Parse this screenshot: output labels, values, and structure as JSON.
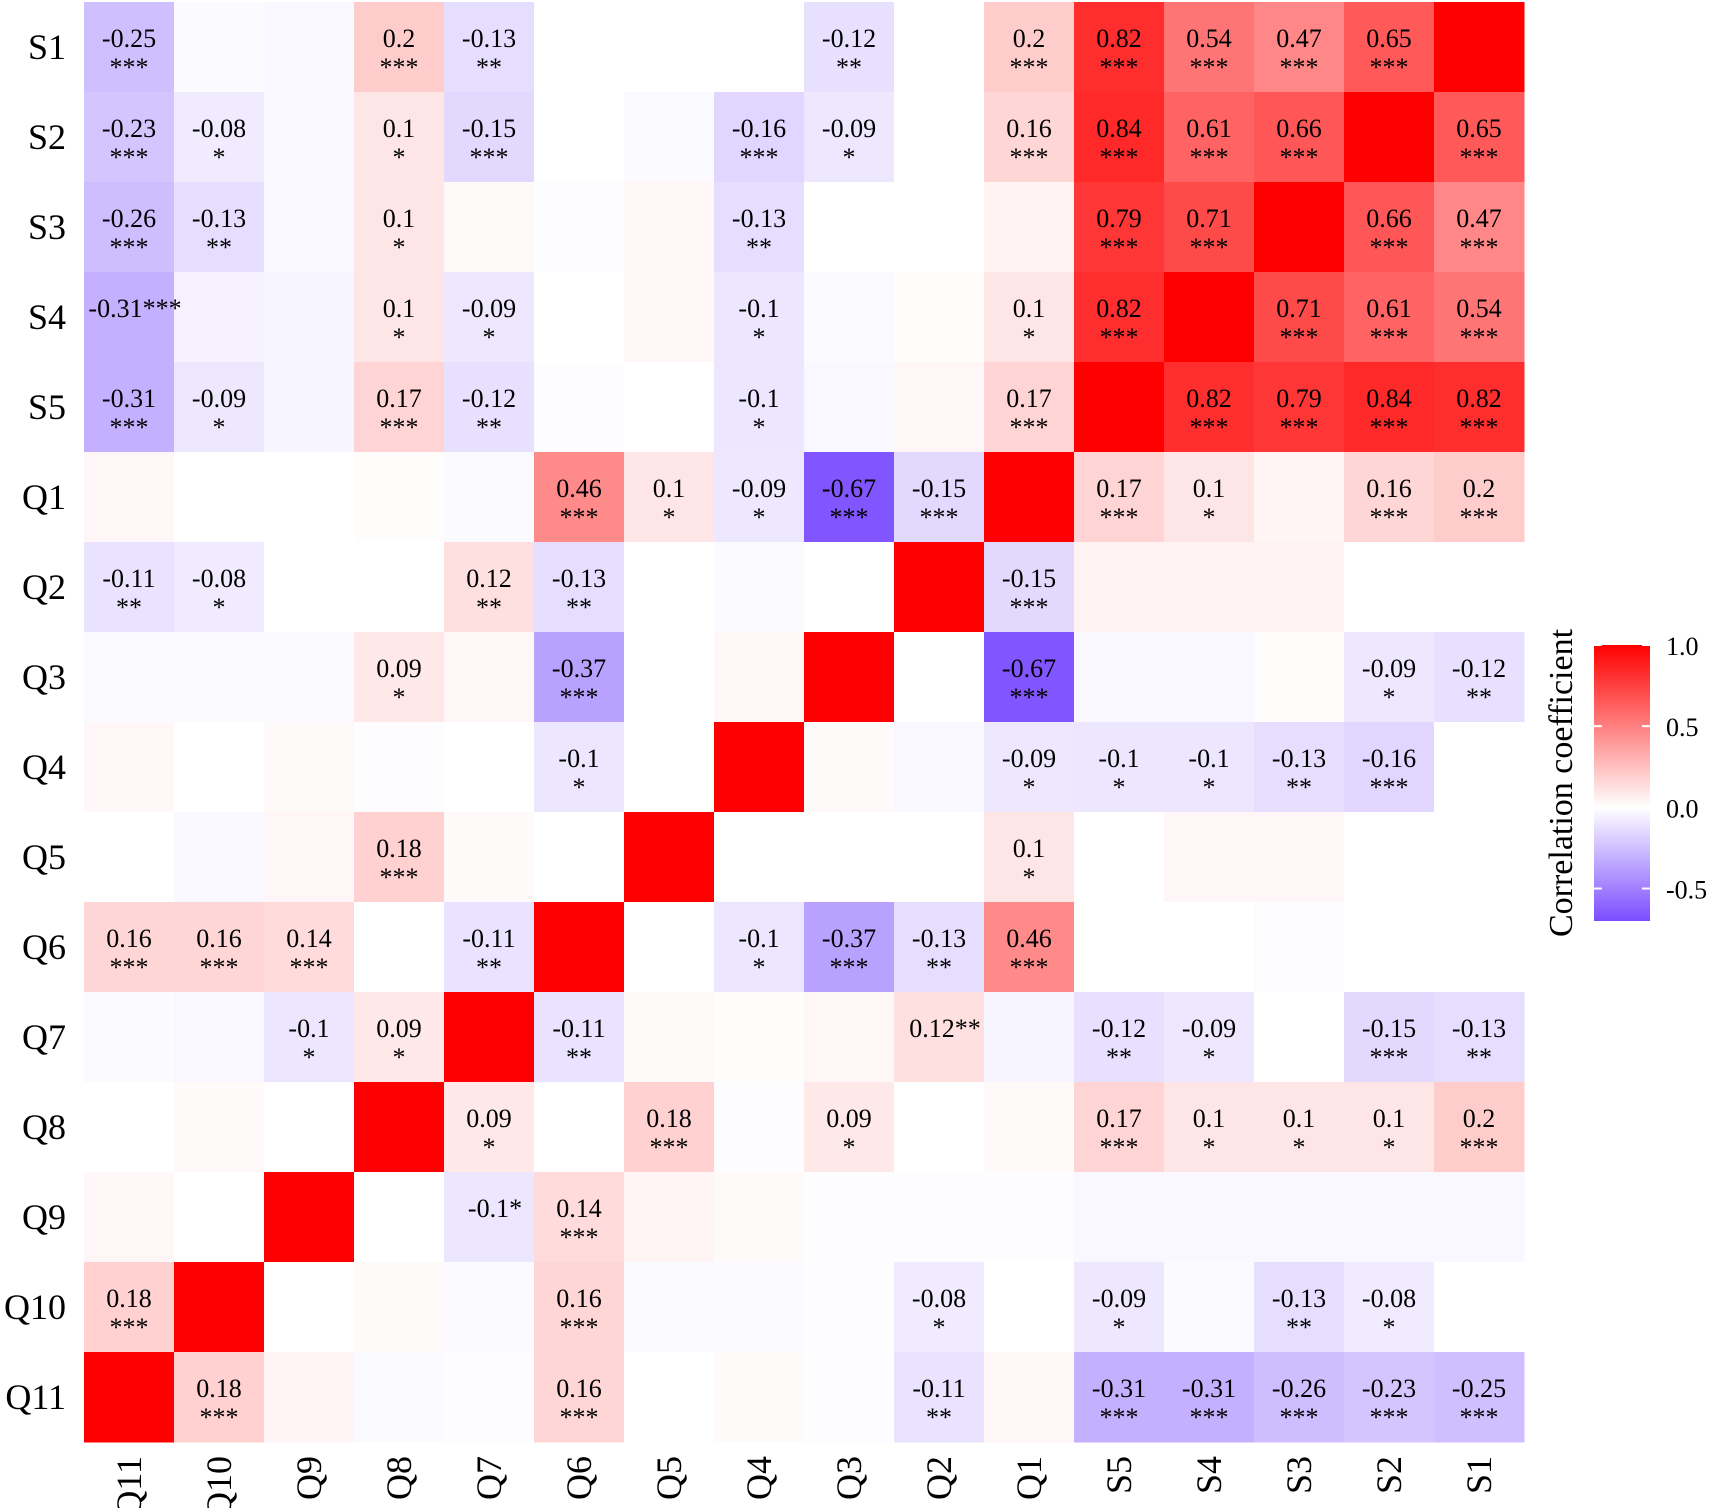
{
  "chart_data": {
    "type": "heatmap",
    "title": "",
    "xlabel": "",
    "ylabel": "",
    "x_categories": [
      "Q11",
      "Q10",
      "Q9",
      "Q8",
      "Q7",
      "Q6",
      "Q5",
      "Q4",
      "Q3",
      "Q2",
      "Q1",
      "S5",
      "S4",
      "S3",
      "S2",
      "S1"
    ],
    "y_categories": [
      "S1",
      "S2",
      "S3",
      "S4",
      "S5",
      "Q1",
      "Q2",
      "Q3",
      "Q4",
      "Q5",
      "Q6",
      "Q7",
      "Q8",
      "Q9",
      "Q10",
      "Q11"
    ],
    "values": [
      [
        -0.25,
        -0.02,
        -0.03,
        0.2,
        -0.13,
        0.0,
        0.0,
        0.0,
        -0.12,
        0.0,
        0.2,
        0.82,
        0.54,
        0.47,
        0.65,
        1.0
      ],
      [
        -0.23,
        -0.08,
        -0.03,
        0.1,
        -0.15,
        0.0,
        -0.02,
        -0.16,
        -0.09,
        0.0,
        0.16,
        0.84,
        0.61,
        0.66,
        1.0,
        0.65
      ],
      [
        -0.26,
        -0.13,
        -0.03,
        0.1,
        0.02,
        -0.01,
        0.03,
        -0.13,
        0.0,
        0.0,
        0.05,
        0.79,
        0.71,
        1.0,
        0.66,
        0.47
      ],
      [
        -0.31,
        -0.05,
        -0.04,
        0.1,
        -0.09,
        0.0,
        0.03,
        -0.1,
        -0.02,
        0.01,
        0.1,
        0.82,
        1.0,
        0.71,
        0.61,
        0.54
      ],
      [
        -0.31,
        -0.09,
        -0.04,
        0.17,
        -0.12,
        -0.01,
        0.0,
        -0.1,
        -0.03,
        0.03,
        0.17,
        1.0,
        0.82,
        0.79,
        0.84,
        0.82
      ],
      [
        0.03,
        0.0,
        0.0,
        0.01,
        -0.02,
        0.46,
        0.1,
        -0.09,
        -0.67,
        -0.15,
        1.0,
        0.17,
        0.1,
        0.04,
        0.16,
        0.2
      ],
      [
        -0.11,
        -0.08,
        0.0,
        0.0,
        0.12,
        -0.13,
        0.0,
        -0.02,
        0.0,
        1.0,
        -0.15,
        0.05,
        0.05,
        0.05,
        0.0,
        0.0
      ],
      [
        -0.02,
        -0.02,
        -0.02,
        0.09,
        0.03,
        -0.37,
        0.0,
        0.03,
        1.0,
        0.0,
        -0.67,
        -0.03,
        -0.03,
        0.01,
        -0.09,
        -0.12
      ],
      [
        0.03,
        0.0,
        0.02,
        -0.01,
        0.0,
        -0.1,
        0.0,
        1.0,
        0.02,
        -0.03,
        -0.09,
        -0.1,
        -0.1,
        -0.13,
        -0.16,
        0.0
      ],
      [
        0.0,
        -0.03,
        0.03,
        0.18,
        0.02,
        0.0,
        1.0,
        0.0,
        0.0,
        0.0,
        0.1,
        0.0,
        0.03,
        0.03,
        0.0,
        0.0
      ],
      [
        0.16,
        0.16,
        0.14,
        0.0,
        -0.11,
        1.0,
        0.0,
        -0.1,
        -0.37,
        -0.13,
        0.46,
        0.0,
        0.0,
        -0.01,
        0.0,
        0.0
      ],
      [
        -0.02,
        -0.03,
        -0.1,
        0.09,
        1.0,
        -0.11,
        0.02,
        0.01,
        0.03,
        0.12,
        -0.04,
        -0.12,
        -0.09,
        0.0,
        -0.15,
        -0.13
      ],
      [
        0.0,
        0.02,
        0.0,
        1.0,
        0.09,
        0.0,
        0.18,
        -0.01,
        0.09,
        0.0,
        0.02,
        0.17,
        0.1,
        0.1,
        0.1,
        0.2
      ],
      [
        0.03,
        0.0,
        1.0,
        0.0,
        -0.1,
        0.14,
        0.04,
        0.02,
        -0.01,
        -0.01,
        -0.01,
        -0.03,
        -0.03,
        -0.03,
        -0.03,
        -0.03
      ],
      [
        0.18,
        1.0,
        0.0,
        0.02,
        -0.02,
        0.16,
        -0.02,
        -0.02,
        -0.01,
        -0.08,
        0.0,
        -0.09,
        -0.02,
        -0.13,
        -0.08,
        0.0
      ],
      [
        1.0,
        0.18,
        0.04,
        -0.02,
        -0.01,
        0.16,
        0.0,
        0.02,
        -0.01,
        -0.11,
        0.03,
        -0.31,
        -0.31,
        -0.26,
        -0.23,
        -0.25
      ]
    ],
    "annotations": [
      {
        "row": 0,
        "col": 0,
        "value": "-0.25",
        "stars": "***"
      },
      {
        "row": 0,
        "col": 3,
        "value": "0.2",
        "stars": "***"
      },
      {
        "row": 0,
        "col": 4,
        "value": "-0.13",
        "stars": "**"
      },
      {
        "row": 0,
        "col": 8,
        "value": "-0.12",
        "stars": "**"
      },
      {
        "row": 0,
        "col": 10,
        "value": "0.2",
        "stars": "***"
      },
      {
        "row": 0,
        "col": 11,
        "value": "0.82",
        "stars": "***"
      },
      {
        "row": 0,
        "col": 12,
        "value": "0.54",
        "stars": "***"
      },
      {
        "row": 0,
        "col": 13,
        "value": "0.47",
        "stars": "***"
      },
      {
        "row": 0,
        "col": 14,
        "value": "0.65",
        "stars": "***"
      },
      {
        "row": 1,
        "col": 0,
        "value": "-0.23",
        "stars": "***"
      },
      {
        "row": 1,
        "col": 1,
        "value": "-0.08",
        "stars": "*"
      },
      {
        "row": 1,
        "col": 3,
        "value": "0.1",
        "stars": "*"
      },
      {
        "row": 1,
        "col": 4,
        "value": "-0.15",
        "stars": "***"
      },
      {
        "row": 1,
        "col": 7,
        "value": "-0.16",
        "stars": "***"
      },
      {
        "row": 1,
        "col": 8,
        "value": "-0.09",
        "stars": "*"
      },
      {
        "row": 1,
        "col": 10,
        "value": "0.16",
        "stars": "***"
      },
      {
        "row": 1,
        "col": 11,
        "value": "0.84",
        "stars": "***"
      },
      {
        "row": 1,
        "col": 12,
        "value": "0.61",
        "stars": "***"
      },
      {
        "row": 1,
        "col": 13,
        "value": "0.66",
        "stars": "***"
      },
      {
        "row": 1,
        "col": 15,
        "value": "0.65",
        "stars": "***"
      },
      {
        "row": 2,
        "col": 0,
        "value": "-0.26",
        "stars": "***"
      },
      {
        "row": 2,
        "col": 1,
        "value": "-0.13",
        "stars": "**"
      },
      {
        "row": 2,
        "col": 3,
        "value": "0.1",
        "stars": "*"
      },
      {
        "row": 2,
        "col": 7,
        "value": "-0.13",
        "stars": "**"
      },
      {
        "row": 2,
        "col": 11,
        "value": "0.79",
        "stars": "***"
      },
      {
        "row": 2,
        "col": 12,
        "value": "0.71",
        "stars": "***"
      },
      {
        "row": 2,
        "col": 14,
        "value": "0.66",
        "stars": "***"
      },
      {
        "row": 2,
        "col": 15,
        "value": "0.47",
        "stars": "***"
      },
      {
        "row": 3,
        "col": 0,
        "value": "-0.31***",
        "stars": "",
        "inline": true
      },
      {
        "row": 3,
        "col": 3,
        "value": "0.1",
        "stars": "*"
      },
      {
        "row": 3,
        "col": 4,
        "value": "-0.09",
        "stars": "*"
      },
      {
        "row": 3,
        "col": 7,
        "value": "-0.1",
        "stars": "*"
      },
      {
        "row": 3,
        "col": 10,
        "value": "0.1",
        "stars": "*"
      },
      {
        "row": 3,
        "col": 11,
        "value": "0.82",
        "stars": "***"
      },
      {
        "row": 3,
        "col": 13,
        "value": "0.71",
        "stars": "***"
      },
      {
        "row": 3,
        "col": 14,
        "value": "0.61",
        "stars": "***"
      },
      {
        "row": 3,
        "col": 15,
        "value": "0.54",
        "stars": "***"
      },
      {
        "row": 4,
        "col": 0,
        "value": "-0.31",
        "stars": "***"
      },
      {
        "row": 4,
        "col": 1,
        "value": "-0.09",
        "stars": "*"
      },
      {
        "row": 4,
        "col": 3,
        "value": "0.17",
        "stars": "***"
      },
      {
        "row": 4,
        "col": 4,
        "value": "-0.12",
        "stars": "**"
      },
      {
        "row": 4,
        "col": 7,
        "value": "-0.1",
        "stars": "*"
      },
      {
        "row": 4,
        "col": 10,
        "value": "0.17",
        "stars": "***"
      },
      {
        "row": 4,
        "col": 12,
        "value": "0.82",
        "stars": "***"
      },
      {
        "row": 4,
        "col": 13,
        "value": "0.79",
        "stars": "***"
      },
      {
        "row": 4,
        "col": 14,
        "value": "0.84",
        "stars": "***"
      },
      {
        "row": 4,
        "col": 15,
        "value": "0.82",
        "stars": "***"
      },
      {
        "row": 5,
        "col": 5,
        "value": "0.46",
        "stars": "***"
      },
      {
        "row": 5,
        "col": 6,
        "value": "0.1",
        "stars": "*"
      },
      {
        "row": 5,
        "col": 7,
        "value": "-0.09",
        "stars": "*"
      },
      {
        "row": 5,
        "col": 8,
        "value": "-0.67",
        "stars": "***"
      },
      {
        "row": 5,
        "col": 9,
        "value": "-0.15",
        "stars": "***"
      },
      {
        "row": 5,
        "col": 11,
        "value": "0.17",
        "stars": "***"
      },
      {
        "row": 5,
        "col": 12,
        "value": "0.1",
        "stars": "*"
      },
      {
        "row": 5,
        "col": 14,
        "value": "0.16",
        "stars": "***"
      },
      {
        "row": 5,
        "col": 15,
        "value": "0.2",
        "stars": "***"
      },
      {
        "row": 6,
        "col": 0,
        "value": "-0.11",
        "stars": "**"
      },
      {
        "row": 6,
        "col": 1,
        "value": "-0.08",
        "stars": "*"
      },
      {
        "row": 6,
        "col": 4,
        "value": "0.12",
        "stars": "**"
      },
      {
        "row": 6,
        "col": 5,
        "value": "-0.13",
        "stars": "**"
      },
      {
        "row": 6,
        "col": 10,
        "value": "-0.15",
        "stars": "***"
      },
      {
        "row": 7,
        "col": 3,
        "value": "0.09",
        "stars": "*"
      },
      {
        "row": 7,
        "col": 5,
        "value": "-0.37",
        "stars": "***"
      },
      {
        "row": 7,
        "col": 10,
        "value": "-0.67",
        "stars": "***"
      },
      {
        "row": 7,
        "col": 14,
        "value": "-0.09",
        "stars": "*"
      },
      {
        "row": 7,
        "col": 15,
        "value": "-0.12",
        "stars": "**"
      },
      {
        "row": 8,
        "col": 5,
        "value": "-0.1",
        "stars": "*"
      },
      {
        "row": 8,
        "col": 10,
        "value": "-0.09",
        "stars": "*"
      },
      {
        "row": 8,
        "col": 11,
        "value": "-0.1",
        "stars": "*"
      },
      {
        "row": 8,
        "col": 12,
        "value": "-0.1",
        "stars": "*"
      },
      {
        "row": 8,
        "col": 13,
        "value": "-0.13",
        "stars": "**"
      },
      {
        "row": 8,
        "col": 14,
        "value": "-0.16",
        "stars": "***"
      },
      {
        "row": 9,
        "col": 3,
        "value": "0.18",
        "stars": "***"
      },
      {
        "row": 9,
        "col": 10,
        "value": "0.1",
        "stars": "*"
      },
      {
        "row": 10,
        "col": 0,
        "value": "0.16",
        "stars": "***"
      },
      {
        "row": 10,
        "col": 1,
        "value": "0.16",
        "stars": "***"
      },
      {
        "row": 10,
        "col": 2,
        "value": "0.14",
        "stars": "***"
      },
      {
        "row": 10,
        "col": 4,
        "value": "-0.11",
        "stars": "**"
      },
      {
        "row": 10,
        "col": 7,
        "value": "-0.1",
        "stars": "*"
      },
      {
        "row": 10,
        "col": 8,
        "value": "-0.37",
        "stars": "***"
      },
      {
        "row": 10,
        "col": 9,
        "value": "-0.13",
        "stars": "**"
      },
      {
        "row": 10,
        "col": 10,
        "value": "0.46",
        "stars": "***"
      },
      {
        "row": 11,
        "col": 2,
        "value": "-0.1",
        "stars": "*"
      },
      {
        "row": 11,
        "col": 3,
        "value": "0.09",
        "stars": "*"
      },
      {
        "row": 11,
        "col": 5,
        "value": "-0.11",
        "stars": "**"
      },
      {
        "row": 11,
        "col": 9,
        "value": "0.12**",
        "stars": "",
        "inline": true
      },
      {
        "row": 11,
        "col": 11,
        "value": "-0.12",
        "stars": "**"
      },
      {
        "row": 11,
        "col": 12,
        "value": "-0.09",
        "stars": "*"
      },
      {
        "row": 11,
        "col": 14,
        "value": "-0.15",
        "stars": "***"
      },
      {
        "row": 11,
        "col": 15,
        "value": "-0.13",
        "stars": "**"
      },
      {
        "row": 12,
        "col": 4,
        "value": "0.09",
        "stars": "*"
      },
      {
        "row": 12,
        "col": 6,
        "value": "0.18",
        "stars": "***"
      },
      {
        "row": 12,
        "col": 8,
        "value": "0.09",
        "stars": "*"
      },
      {
        "row": 12,
        "col": 11,
        "value": "0.17",
        "stars": "***"
      },
      {
        "row": 12,
        "col": 12,
        "value": "0.1",
        "stars": "*"
      },
      {
        "row": 12,
        "col": 13,
        "value": "0.1",
        "stars": "*"
      },
      {
        "row": 12,
        "col": 14,
        "value": "0.1",
        "stars": "*"
      },
      {
        "row": 12,
        "col": 15,
        "value": "0.2",
        "stars": "***"
      },
      {
        "row": 13,
        "col": 4,
        "value": "-0.1*",
        "stars": "",
        "inline": true
      },
      {
        "row": 13,
        "col": 5,
        "value": "0.14",
        "stars": "***"
      },
      {
        "row": 14,
        "col": 0,
        "value": "0.18",
        "stars": "***"
      },
      {
        "row": 14,
        "col": 5,
        "value": "0.16",
        "stars": "***"
      },
      {
        "row": 14,
        "col": 9,
        "value": "-0.08",
        "stars": "*"
      },
      {
        "row": 14,
        "col": 11,
        "value": "-0.09",
        "stars": "*"
      },
      {
        "row": 14,
        "col": 13,
        "value": "-0.13",
        "stars": "**"
      },
      {
        "row": 14,
        "col": 14,
        "value": "-0.08",
        "stars": "*"
      },
      {
        "row": 15,
        "col": 1,
        "value": "0.18",
        "stars": "***"
      },
      {
        "row": 15,
        "col": 5,
        "value": "0.16",
        "stars": "***"
      },
      {
        "row": 15,
        "col": 9,
        "value": "-0.11",
        "stars": "**"
      },
      {
        "row": 15,
        "col": 11,
        "value": "-0.31",
        "stars": "***"
      },
      {
        "row": 15,
        "col": 12,
        "value": "-0.31",
        "stars": "***"
      },
      {
        "row": 15,
        "col": 13,
        "value": "-0.26",
        "stars": "***"
      },
      {
        "row": 15,
        "col": 14,
        "value": "-0.23",
        "stars": "***"
      },
      {
        "row": 15,
        "col": 15,
        "value": "-0.25",
        "stars": "***"
      }
    ],
    "colorbar": {
      "title": "Correlation coefficient",
      "range": [
        -0.7,
        1.0
      ],
      "ticks": [
        1.0,
        0.5,
        0.0,
        -0.5
      ],
      "tick_labels": [
        "1.0",
        "0.5",
        "0.0",
        "-0.5"
      ]
    },
    "colors": {
      "high": "#ff0000",
      "mid": "#ffffff",
      "low": "#7b4dff"
    },
    "grid": false
  }
}
